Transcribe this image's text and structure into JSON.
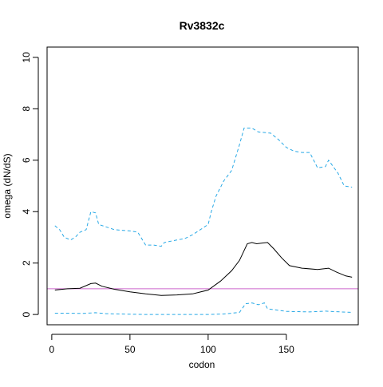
{
  "chart_data": {
    "type": "line",
    "title": "Rv3832c",
    "xlabel": "codon",
    "ylabel": "omega (dN/dS)",
    "xlim": [
      -3,
      196
    ],
    "ylim": [
      -0.4,
      10.4
    ],
    "x_ticks": [
      0,
      50,
      100,
      150
    ],
    "y_ticks": [
      0,
      2,
      4,
      6,
      8,
      10
    ],
    "reference_line": {
      "y": 1,
      "color": "#cc66cc"
    },
    "series": [
      {
        "role": "estimate",
        "color": "#000000",
        "dash": "solid",
        "points": [
          [
            2,
            0.95
          ],
          [
            10,
            1.0
          ],
          [
            18,
            1.02
          ],
          [
            25,
            1.2
          ],
          [
            28,
            1.22
          ],
          [
            32,
            1.1
          ],
          [
            40,
            0.98
          ],
          [
            50,
            0.88
          ],
          [
            60,
            0.8
          ],
          [
            70,
            0.74
          ],
          [
            80,
            0.76
          ],
          [
            90,
            0.8
          ],
          [
            100,
            0.95
          ],
          [
            108,
            1.3
          ],
          [
            115,
            1.7
          ],
          [
            120,
            2.1
          ],
          [
            125,
            2.75
          ],
          [
            128,
            2.8
          ],
          [
            131,
            2.75
          ],
          [
            135,
            2.78
          ],
          [
            138,
            2.8
          ],
          [
            142,
            2.55
          ],
          [
            147,
            2.2
          ],
          [
            152,
            1.9
          ],
          [
            160,
            1.8
          ],
          [
            170,
            1.75
          ],
          [
            177,
            1.8
          ],
          [
            182,
            1.65
          ],
          [
            188,
            1.5
          ],
          [
            192,
            1.45
          ]
        ]
      },
      {
        "role": "upper bound",
        "color": "#29a9e6",
        "dash": "dashed",
        "points": [
          [
            2,
            3.45
          ],
          [
            5,
            3.3
          ],
          [
            8,
            3.0
          ],
          [
            12,
            2.9
          ],
          [
            15,
            3.0
          ],
          [
            18,
            3.2
          ],
          [
            22,
            3.3
          ],
          [
            25,
            4.0
          ],
          [
            28,
            3.95
          ],
          [
            30,
            3.5
          ],
          [
            40,
            3.3
          ],
          [
            50,
            3.25
          ],
          [
            55,
            3.2
          ],
          [
            60,
            2.7
          ],
          [
            65,
            2.7
          ],
          [
            70,
            2.65
          ],
          [
            72,
            2.8
          ],
          [
            80,
            2.9
          ],
          [
            85,
            2.95
          ],
          [
            90,
            3.1
          ],
          [
            95,
            3.3
          ],
          [
            100,
            3.5
          ],
          [
            102,
            4.0
          ],
          [
            105,
            4.6
          ],
          [
            110,
            5.2
          ],
          [
            115,
            5.6
          ],
          [
            120,
            6.6
          ],
          [
            123,
            7.25
          ],
          [
            128,
            7.25
          ],
          [
            132,
            7.1
          ],
          [
            140,
            7.05
          ],
          [
            145,
            6.8
          ],
          [
            150,
            6.5
          ],
          [
            155,
            6.35
          ],
          [
            160,
            6.3
          ],
          [
            165,
            6.3
          ],
          [
            170,
            5.7
          ],
          [
            175,
            5.75
          ],
          [
            177,
            6.0
          ],
          [
            180,
            5.75
          ],
          [
            183,
            5.5
          ],
          [
            187,
            5.0
          ],
          [
            192,
            4.95
          ]
        ]
      },
      {
        "role": "lower bound",
        "color": "#29a9e6",
        "dash": "dashed",
        "points": [
          [
            2,
            0.05
          ],
          [
            10,
            0.05
          ],
          [
            20,
            0.04
          ],
          [
            28,
            0.07
          ],
          [
            35,
            0.03
          ],
          [
            50,
            0.01
          ],
          [
            60,
            0.0
          ],
          [
            80,
            0.0
          ],
          [
            100,
            0.0
          ],
          [
            110,
            0.02
          ],
          [
            120,
            0.08
          ],
          [
            124,
            0.42
          ],
          [
            128,
            0.45
          ],
          [
            132,
            0.38
          ],
          [
            136,
            0.45
          ],
          [
            138,
            0.22
          ],
          [
            150,
            0.12
          ],
          [
            165,
            0.1
          ],
          [
            175,
            0.13
          ],
          [
            185,
            0.1
          ],
          [
            192,
            0.08
          ]
        ]
      }
    ]
  }
}
